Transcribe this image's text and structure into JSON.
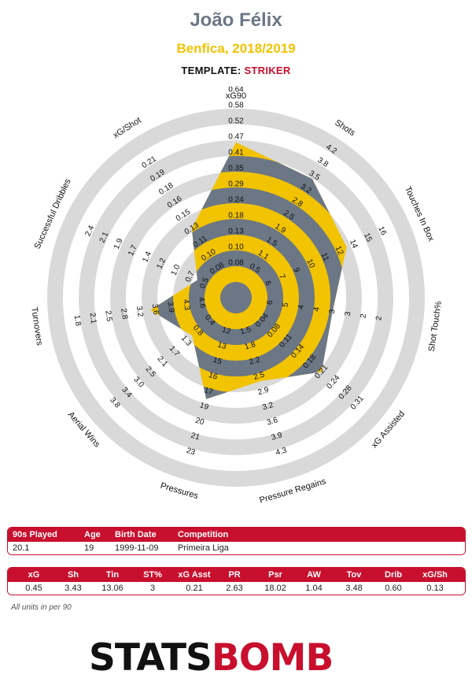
{
  "header": {
    "player": "João Félix",
    "club_season": "Benfica, 2018/2019",
    "template_label": "TEMPLATE:",
    "template_value": "STRIKER"
  },
  "colors": {
    "player_fill": "#f2c300",
    "inner_fill": "#6b7785",
    "ring_gray": "#d9d9d9",
    "accent_red": "#c8102e",
    "name_color": "#6b7785"
  },
  "chart_data": {
    "type": "radar",
    "title": "João Félix",
    "metrics": [
      {
        "name": "xG90",
        "value": 0.45,
        "ticks": [
          "0.08",
          "0.10",
          "0.13",
          "0.18",
          "0.24",
          "0.29",
          "0.35",
          "0.41",
          "0.47",
          "0.52",
          "0.58",
          "0.64"
        ]
      },
      {
        "name": "Shots",
        "value": 3.43,
        "ticks": [
          "0.5",
          "1.1",
          "1.5",
          "1.9",
          "2.5",
          "2.8",
          "3.2",
          "3.5",
          "3.8",
          "4.2"
        ]
      },
      {
        "name": "Touches In Box",
        "value": 13.06,
        "ticks": [
          "6",
          "7",
          "9",
          "10",
          "11",
          "12",
          "14",
          "15",
          "16"
        ]
      },
      {
        "name": "Shot Touch%",
        "value": 3,
        "ticks": [
          "6",
          "5",
          "4",
          "4",
          "3",
          "3",
          "2",
          "2"
        ]
      },
      {
        "name": "xG Assisted",
        "value": 0.21,
        "ticks": [
          "0.04",
          "0.08",
          "0.11",
          "0.14",
          "0.18",
          "0.21",
          "0.24",
          "0.28",
          "0.31"
        ]
      },
      {
        "name": "Pressure Regains",
        "value": 2.63,
        "ticks": [
          "1.5",
          "1.8",
          "2.2",
          "2.5",
          "2.9",
          "3.2",
          "3.6",
          "3.9",
          "4.3"
        ]
      },
      {
        "name": "Pressures",
        "value": 18.02,
        "ticks": [
          "12",
          "13",
          "15",
          "16",
          "17",
          "19",
          "20",
          "21",
          "23"
        ]
      },
      {
        "name": "Aerial Wins",
        "value": 1.04,
        "ticks": [
          "0.4",
          "0.8",
          "1.3",
          "1.7",
          "2.1",
          "2.5",
          "3.0",
          "3.4",
          "3.8"
        ]
      },
      {
        "name": "Turnovers",
        "value": 3.48,
        "ticks": [
          "4.6",
          "4.3",
          "3.9",
          "3.6",
          "3.2",
          "2.8",
          "2.5",
          "2.1",
          "1.8"
        ]
      },
      {
        "name": "Successful Dribbles",
        "value": 0.6,
        "ticks": [
          "0.5",
          "0.7",
          "1.0",
          "1.2",
          "1.4",
          "1.7",
          "1.9",
          "2.1",
          "2.4"
        ]
      },
      {
        "name": "xG/Shot",
        "value": 0.13,
        "ticks": [
          "0.08",
          "0.10",
          "0.11",
          "0.13",
          "0.15",
          "0.16",
          "0.18",
          "0.19",
          "0.21"
        ]
      }
    ]
  },
  "info_table": {
    "headers": [
      "90s Played",
      "Age",
      "Birth Date",
      "Competition"
    ],
    "values": [
      "20.1",
      "19",
      "1999-11-09",
      "Primeira Liga"
    ]
  },
  "stats_table": {
    "headers": [
      "xG",
      "Sh",
      "Tin",
      "ST%",
      "xG Asst",
      "PR",
      "Psr",
      "AW",
      "Tov",
      "Drib",
      "xG/Sh"
    ],
    "values": [
      "0.45",
      "3.43",
      "13.06",
      "3",
      "0.21",
      "2.63",
      "18.02",
      "1.04",
      "3.48",
      "0.60",
      "0.13"
    ]
  },
  "footnote": "All units in per 90",
  "logo": {
    "part1": "STATS",
    "part2": "BOMB"
  }
}
